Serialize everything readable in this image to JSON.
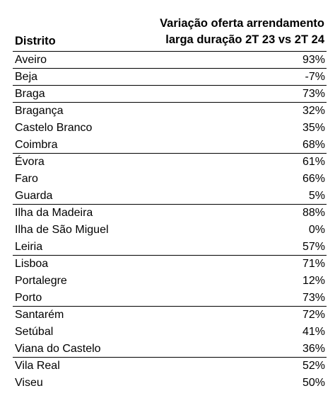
{
  "table": {
    "headers": {
      "district": "Distrito",
      "variation_line1": "Variação oferta arrendamento",
      "variation_line2": "larga duração 2T 23 vs 2T 24"
    },
    "rows": [
      {
        "district": "Aveiro",
        "value": "93%"
      },
      {
        "district": "Beja",
        "value": "-7%"
      },
      {
        "district": "Braga",
        "value": "73%"
      },
      {
        "district": "Bragança",
        "value": "32%"
      },
      {
        "district": "Castelo Branco",
        "value": "35%"
      },
      {
        "district": "Coimbra",
        "value": "68%"
      },
      {
        "district": "Évora",
        "value": "61%"
      },
      {
        "district": "Faro",
        "value": "66%"
      },
      {
        "district": "Guarda",
        "value": "5%"
      },
      {
        "district": "Ilha da Madeira",
        "value": "88%"
      },
      {
        "district": "Ilha de São Miguel",
        "value": "0%"
      },
      {
        "district": "Leiria",
        "value": "57%"
      },
      {
        "district": "Lisboa",
        "value": "71%"
      },
      {
        "district": "Portalegre",
        "value": "12%"
      },
      {
        "district": "Porto",
        "value": "73%"
      },
      {
        "district": "Santarém",
        "value": "72%"
      },
      {
        "district": "Setúbal",
        "value": "41%"
      },
      {
        "district": "Viana do Castelo",
        "value": "36%"
      },
      {
        "district": "Vila Real",
        "value": "52%"
      },
      {
        "district": "Viseu",
        "value": "50%"
      }
    ]
  }
}
